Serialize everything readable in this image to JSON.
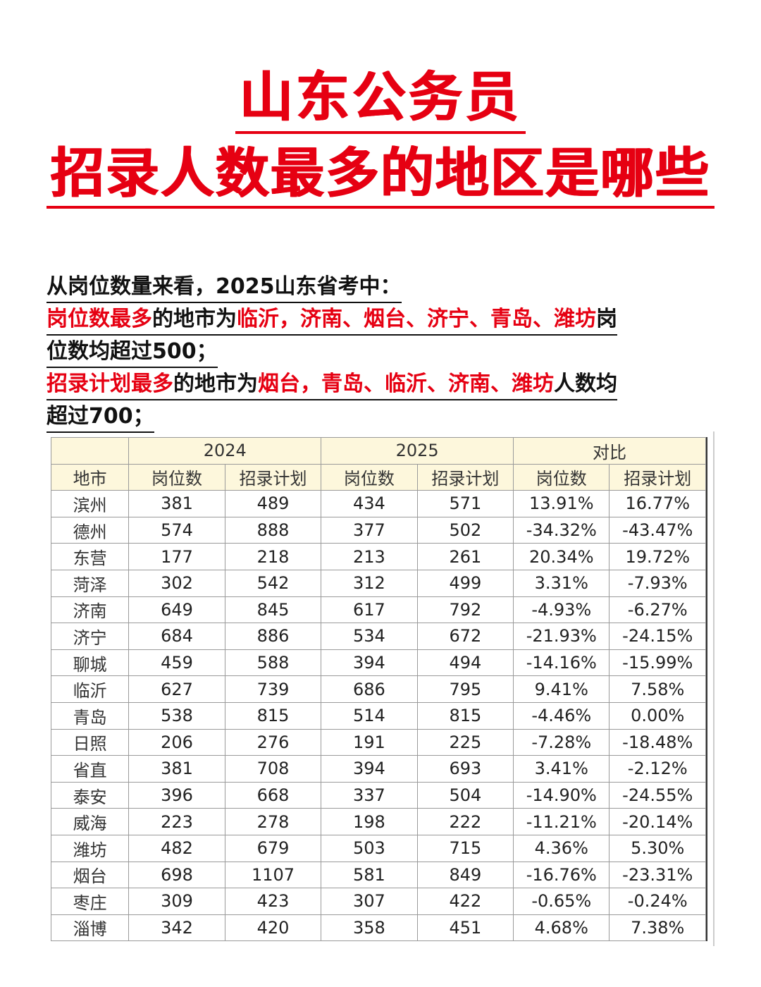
{
  "title": {
    "line1": "山东公务员",
    "line2": "招录人数最多的地区是哪些"
  },
  "summary": {
    "line1": "从岗位数量来看，2025山东省考中：",
    "line2": {
      "red1": "岗位数最多",
      "text1": "的地市为",
      "red2": "临沂，济南、烟台、济宁、青岛、潍坊",
      "text2": "岗"
    },
    "line3": "位数均超过500；",
    "line4": {
      "red1": "招录计划最多",
      "text1": "的地市为",
      "red2": "烟台，青岛、临沂、济南、潍坊",
      "text2": "人数均"
    },
    "line5": "超过700；"
  },
  "table": {
    "group_headers": [
      "2024",
      "2025",
      "对比"
    ],
    "columns": [
      "地市",
      "岗位数",
      "招录计划",
      "岗位数",
      "招录计划",
      "岗位数",
      "招录计划"
    ],
    "rows": [
      [
        "滨州",
        "381",
        "489",
        "434",
        "571",
        "13.91%",
        "16.77%"
      ],
      [
        "德州",
        "574",
        "888",
        "377",
        "502",
        "-34.32%",
        "-43.47%"
      ],
      [
        "东营",
        "177",
        "218",
        "213",
        "261",
        "20.34%",
        "19.72%"
      ],
      [
        "菏泽",
        "302",
        "542",
        "312",
        "499",
        "3.31%",
        "-7.93%"
      ],
      [
        "济南",
        "649",
        "845",
        "617",
        "792",
        "-4.93%",
        "-6.27%"
      ],
      [
        "济宁",
        "684",
        "886",
        "534",
        "672",
        "-21.93%",
        "-24.15%"
      ],
      [
        "聊城",
        "459",
        "588",
        "394",
        "494",
        "-14.16%",
        "-15.99%"
      ],
      [
        "临沂",
        "627",
        "739",
        "686",
        "795",
        "9.41%",
        "7.58%"
      ],
      [
        "青岛",
        "538",
        "815",
        "514",
        "815",
        "-4.46%",
        "0.00%"
      ],
      [
        "日照",
        "206",
        "276",
        "191",
        "225",
        "-7.28%",
        "-18.48%"
      ],
      [
        "省直",
        "381",
        "708",
        "394",
        "693",
        "3.41%",
        "-2.12%"
      ],
      [
        "泰安",
        "396",
        "668",
        "337",
        "504",
        "-14.90%",
        "-24.55%"
      ],
      [
        "威海",
        "223",
        "278",
        "198",
        "222",
        "-11.21%",
        "-20.14%"
      ],
      [
        "潍坊",
        "482",
        "679",
        "503",
        "715",
        "4.36%",
        "5.30%"
      ],
      [
        "烟台",
        "698",
        "1107",
        "581",
        "849",
        "-16.76%",
        "-23.31%"
      ],
      [
        "枣庄",
        "309",
        "423",
        "307",
        "422",
        "-0.65%",
        "-0.24%"
      ],
      [
        "淄博",
        "342",
        "420",
        "358",
        "451",
        "4.68%",
        "7.38%"
      ]
    ]
  }
}
